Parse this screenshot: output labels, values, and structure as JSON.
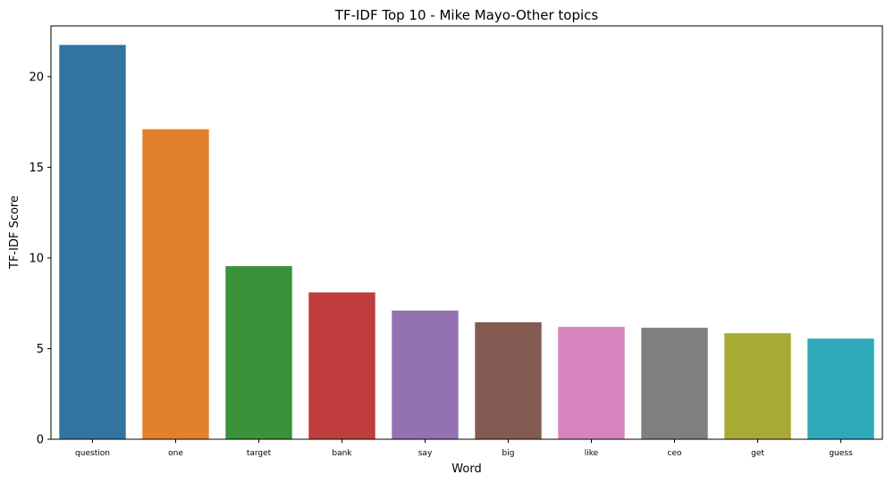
{
  "chart_data": {
    "type": "bar",
    "title": "TF-IDF Top 10 - Mike Mayo-Other topics",
    "xlabel": "Word",
    "ylabel": "TF-IDF Score",
    "categories": [
      "question",
      "one",
      "target",
      "bank",
      "say",
      "big",
      "like",
      "ceo",
      "get",
      "guess"
    ],
    "values": [
      21.75,
      17.1,
      9.55,
      8.1,
      7.1,
      6.45,
      6.2,
      6.15,
      5.85,
      5.55
    ],
    "colors": [
      "#3274a1",
      "#e1812c",
      "#3a923a",
      "#c03d3e",
      "#9372b2",
      "#845b53",
      "#d684bd",
      "#7f7f7f",
      "#a9aa35",
      "#2ea9b8"
    ],
    "yticks": [
      0,
      5,
      10,
      15,
      20
    ],
    "ylim": [
      0,
      22.8
    ],
    "grid": false,
    "legend": "none"
  }
}
